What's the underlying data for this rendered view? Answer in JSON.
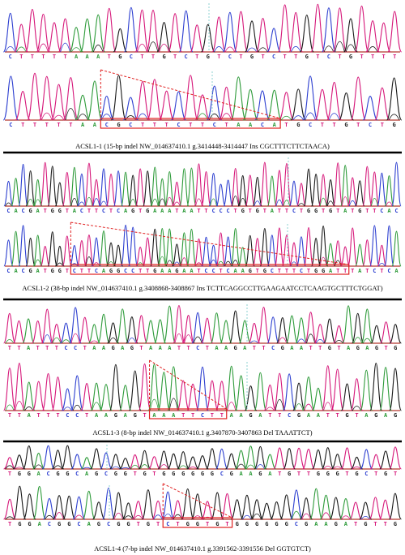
{
  "colors": {
    "A": "#2e9b3a",
    "C": "#2d3fd0",
    "G": "#1a1a1a",
    "T": "#d6187a",
    "baseline": "#b4382e",
    "marker": "#8cd2d2",
    "box": "#e02020"
  },
  "panels": [
    {
      "id": "acsl1-1",
      "caption": "ACSL1-1 (15-bp indel NW_014637410.1 g.3414448-3414447 Ins CGCTTTCTTCTAACA)",
      "wt_sequence": "CTTTTTAAATGCTTGTCTGTCTGTCTTGTCTGTTTT",
      "mut_sequence": "CTTTTTAACGCTTTCTTCTAACATGCTTGTCTG",
      "box_label": "CGCTTTCTTCTAACA"
    },
    {
      "id": "acsl1-2",
      "caption": "ACSL1-2 (38-bp indel NW_014637410.1 g.3408868-3408867 Ins TCTTCAGGCCTTGAAGAATCCTCAAGTGCTTTCTGGAT)",
      "wt_sequence": "CACGATGGTACTTCTCAGTGAAATAATTCCCTGTGTATTCTGGTGTATGTTCAC",
      "mut_sequence": "CACGATGGTCTTCAGGCCTTGAAGAATCCTCAAGTGCTTTCTGGATTTATCTCA",
      "box_label": "TCTTCAGGCCTTGAAGAATCCTCAAGTGCTTTCTGGAT"
    },
    {
      "id": "acsl1-3",
      "caption": "ACSL1-3 (8-bp indel NW_014637410.1 g.3407870-3407863 Del TAAATTCT)",
      "wt_sequence": "TTATTTCCTAAGAGTAAATTCTAAGATTCGAATTGTAGAGTG",
      "mut_sequence": "TTATTTCCTAAGAGTAAATTCTTAAGATTCGAATTGTAGAG",
      "box_label": "TAAATTCT"
    },
    {
      "id": "acsl1-4",
      "caption": "ACSL1-4 (7-bp indel NW_014637410.1 g.3391562-3391556 Del GGTGTCT)",
      "wt_sequence": "TGGACGGCAGCGGTGTGGGGGGCGAAGATGTTGGGTGCTGT",
      "mut_sequence": "TGGACGGCAGCGGTGTCTGGTGTGGGGGGCGAAGATGTTG",
      "box_label": "CTGGTGT"
    }
  ]
}
